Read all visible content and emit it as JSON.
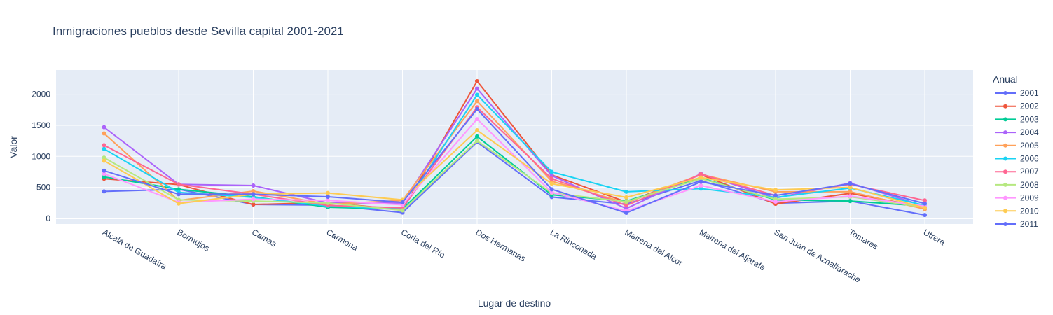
{
  "chart_data": {
    "type": "line",
    "title": "Inmigraciones pueblos desde Sevilla capital 2001-2021",
    "xlabel": "Lugar de destino",
    "ylabel": "Valor",
    "ylim": [
      -90,
      2390
    ],
    "yticks": [
      0,
      500,
      1000,
      1500,
      2000
    ],
    "grid": true,
    "legend_title": "Anual",
    "legend_position": "right",
    "categories": [
      "Alcalá de Guadaíra",
      "Bormujos",
      "Camas",
      "Carmona",
      "Coria del Río",
      "Dos Hermanas",
      "La Rinconada",
      "Mairena del Alcor",
      "Mairena del Aljarafe",
      "San Juan de Aznalfarache",
      "Tomares",
      "Utrera"
    ],
    "series": [
      {
        "name": "2001",
        "color": "#636efa",
        "values": [
          435,
          470,
          225,
          215,
          95,
          1230,
          345,
          230,
          610,
          245,
          280,
          55
        ]
      },
      {
        "name": "2002",
        "color": "#EF553B",
        "values": [
          640,
          545,
          225,
          255,
          140,
          2210,
          700,
          265,
          705,
          235,
          405,
          180
        ]
      },
      {
        "name": "2003",
        "color": "#00cc96",
        "values": [
          670,
          470,
          350,
          180,
          150,
          1320,
          380,
          280,
          650,
          300,
          280,
          200
        ]
      },
      {
        "name": "2004",
        "color": "#ab63fa",
        "values": [
          1470,
          550,
          530,
          250,
          250,
          2090,
          690,
          160,
          720,
          330,
          570,
          200
        ]
      },
      {
        "name": "2005",
        "color": "#FFA15A",
        "values": [
          1370,
          290,
          440,
          230,
          290,
          1890,
          600,
          250,
          710,
          430,
          430,
          150
        ]
      },
      {
        "name": "2006",
        "color": "#19d3f3",
        "values": [
          1120,
          420,
          340,
          200,
          150,
          1990,
          750,
          430,
          480,
          340,
          490,
          210
        ]
      },
      {
        "name": "2007",
        "color": "#FF6692",
        "values": [
          1180,
          550,
          390,
          210,
          170,
          1790,
          640,
          210,
          710,
          370,
          550,
          290
        ]
      },
      {
        "name": "2008",
        "color": "#B6E880",
        "values": [
          980,
          300,
          280,
          250,
          130,
          1250,
          410,
          270,
          640,
          310,
          350,
          180
        ]
      },
      {
        "name": "2009",
        "color": "#FF97FF",
        "values": [
          720,
          260,
          310,
          290,
          220,
          1600,
          420,
          120,
          530,
          270,
          360,
          200
        ]
      },
      {
        "name": "2010",
        "color": "#FECB52",
        "values": [
          930,
          240,
          390,
          410,
          300,
          1420,
          560,
          340,
          660,
          460,
          500,
          170
        ]
      },
      {
        "name": "2011",
        "color": "#636efa",
        "values": [
          770,
          390,
          390,
          350,
          260,
          1760,
          470,
          90,
          590,
          370,
          560,
          240
        ]
      }
    ]
  }
}
